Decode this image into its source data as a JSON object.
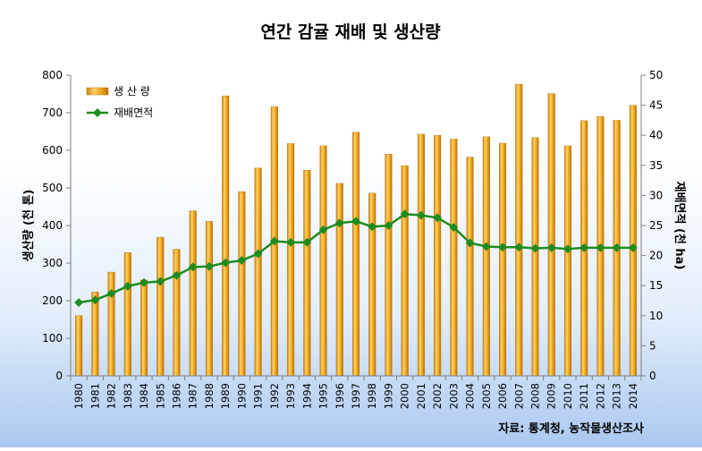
{
  "chart_data": {
    "type": "bar+line",
    "title": "연간 감귤 재배 및 생산량",
    "categories": [
      "1980",
      "1981",
      "1982",
      "1983",
      "1984",
      "1985",
      "1986",
      "1987",
      "1988",
      "1989",
      "1990",
      "1991",
      "1992",
      "1993",
      "1994",
      "1995",
      "1996",
      "1997",
      "1998",
      "1999",
      "2000",
      "2001",
      "2002",
      "2003",
      "2004",
      "2005",
      "2006",
      "2007",
      "2008",
      "2009",
      "2010",
      "2011",
      "2012",
      "2013",
      "2014"
    ],
    "series": [
      {
        "name": "생 산 량",
        "type": "bar",
        "axis": "left",
        "color": "#f0a81c",
        "values": [
          160,
          223,
          276,
          328,
          255,
          369,
          337,
          439,
          411,
          745,
          490,
          553,
          716,
          618,
          547,
          612,
          512,
          648,
          486,
          590,
          559,
          643,
          640,
          630,
          582,
          636,
          619,
          776,
          634,
          751,
          612,
          679,
          690,
          680,
          720
        ]
      },
      {
        "name": "재배면적",
        "type": "line",
        "axis": "right",
        "color": "#1e8c1e",
        "values": [
          12.2,
          12.6,
          13.7,
          14.9,
          15.5,
          15.7,
          16.7,
          18.1,
          18.2,
          18.8,
          19.2,
          20.3,
          22.4,
          22.2,
          22.2,
          24.3,
          25.4,
          25.7,
          24.8,
          25.0,
          26.9,
          26.7,
          26.3,
          24.7,
          22.1,
          21.5,
          21.4,
          21.4,
          21.2,
          21.3,
          21.1,
          21.3,
          21.3,
          21.3,
          21.3
        ]
      }
    ],
    "ylabel_left": "생산량 (천 톤)",
    "ylabel_right": "재배면적 (천 ha)",
    "ylim_left": [
      0,
      800
    ],
    "ylim_right": [
      0,
      50
    ],
    "yticks_left": [
      "0",
      "100",
      "200",
      "300",
      "400",
      "500",
      "600",
      "700",
      "800"
    ],
    "yticks_right": [
      "0",
      "5",
      "10",
      "15",
      "20",
      "25",
      "30",
      "35",
      "40",
      "45",
      "50"
    ],
    "legend_position": "top-left",
    "source": "자료: 통계청, 농작물생산조사",
    "grid": false
  }
}
